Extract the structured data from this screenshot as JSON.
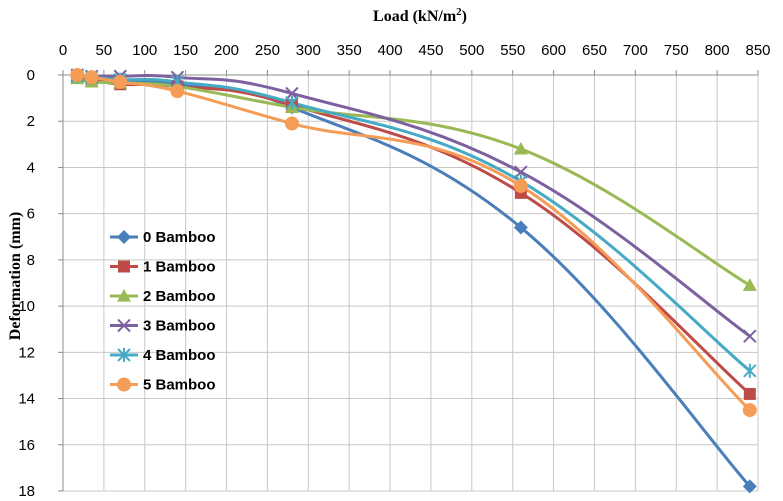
{
  "chart_data": {
    "type": "line",
    "xlabel": "Load (kN/m",
    "xlabel_sup": "2",
    "xlabel_end": ")",
    "ylabel": "Deformation (mm)",
    "xlim": [
      0,
      850
    ],
    "ylim": [
      0,
      18
    ],
    "y_inverted": true,
    "x_axis_position": "top",
    "grid": true,
    "legend_position": "left-middle",
    "x_ticks": [
      0,
      50,
      100,
      150,
      200,
      250,
      300,
      350,
      400,
      450,
      500,
      550,
      600,
      650,
      700,
      750,
      800,
      850
    ],
    "y_ticks": [
      0,
      2,
      4,
      6,
      8,
      10,
      12,
      14,
      16,
      18
    ],
    "x": [
      17.5,
      35,
      70,
      140,
      280,
      560,
      840
    ],
    "series": [
      {
        "name": "0 Bamboo",
        "color": "#4a7ebb",
        "marker": "diamond",
        "values": [
          0.1,
          0.2,
          0.3,
          0.4,
          1.4,
          6.6,
          17.8
        ]
      },
      {
        "name": "1 Bamboo",
        "color": "#be4b48",
        "marker": "square",
        "values": [
          0.1,
          0.2,
          0.4,
          0.5,
          1.3,
          5.1,
          13.8
        ]
      },
      {
        "name": "2 Bamboo",
        "color": "#98b954",
        "marker": "triangle",
        "values": [
          0.15,
          0.3,
          0.35,
          0.5,
          1.4,
          3.2,
          9.1
        ]
      },
      {
        "name": "3 Bamboo",
        "color": "#7d60a0",
        "marker": "x",
        "values": [
          0.0,
          0.05,
          0.05,
          0.1,
          0.8,
          4.2,
          11.3
        ]
      },
      {
        "name": "4 Bamboo",
        "color": "#46aac5",
        "marker": "star",
        "values": [
          0.05,
          0.1,
          0.2,
          0.3,
          1.2,
          4.6,
          12.8
        ]
      },
      {
        "name": "5 Bamboo",
        "color": "#f59d56",
        "marker": "circle",
        "values": [
          0.0,
          0.1,
          0.3,
          0.7,
          2.1,
          4.8,
          14.5
        ]
      }
    ]
  }
}
